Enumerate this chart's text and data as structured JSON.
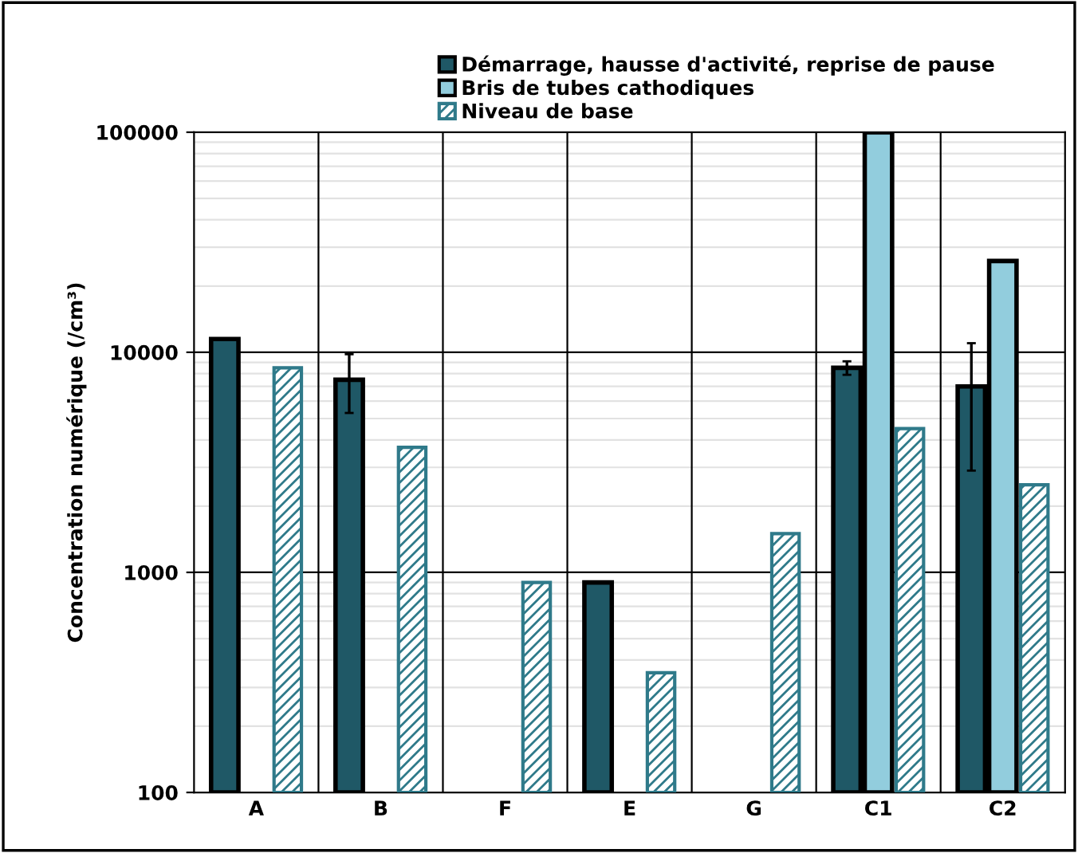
{
  "chart_data": {
    "type": "bar",
    "ylabel": "Concentration numérique (/cm³)",
    "categories": [
      "A",
      "B",
      "F",
      "E",
      "G",
      "C1",
      "C2"
    ],
    "series": [
      {
        "name": "Démarrage, hausse d'activité, reprise de pause",
        "color": "#1f5866",
        "values": [
          11500,
          7500,
          null,
          900,
          null,
          8500,
          7000
        ],
        "errors": [
          null,
          [
            5300,
            9800
          ],
          null,
          null,
          null,
          [
            7900,
            9100
          ],
          [
            2900,
            11000
          ]
        ]
      },
      {
        "name": "Bris de tubes cathodiques",
        "color": "#92cddd",
        "values": [
          null,
          null,
          null,
          null,
          null,
          100000,
          26000
        ]
      },
      {
        "name": "Niveau de base",
        "color": "#2f7a8a",
        "values": [
          8500,
          3700,
          900,
          350,
          1500,
          4500,
          2500
        ]
      }
    ],
    "log": true,
    "ylim": [
      100,
      100000
    ],
    "yticks": [
      100,
      1000,
      10000,
      100000
    ],
    "grid": true,
    "legend": "top"
  }
}
